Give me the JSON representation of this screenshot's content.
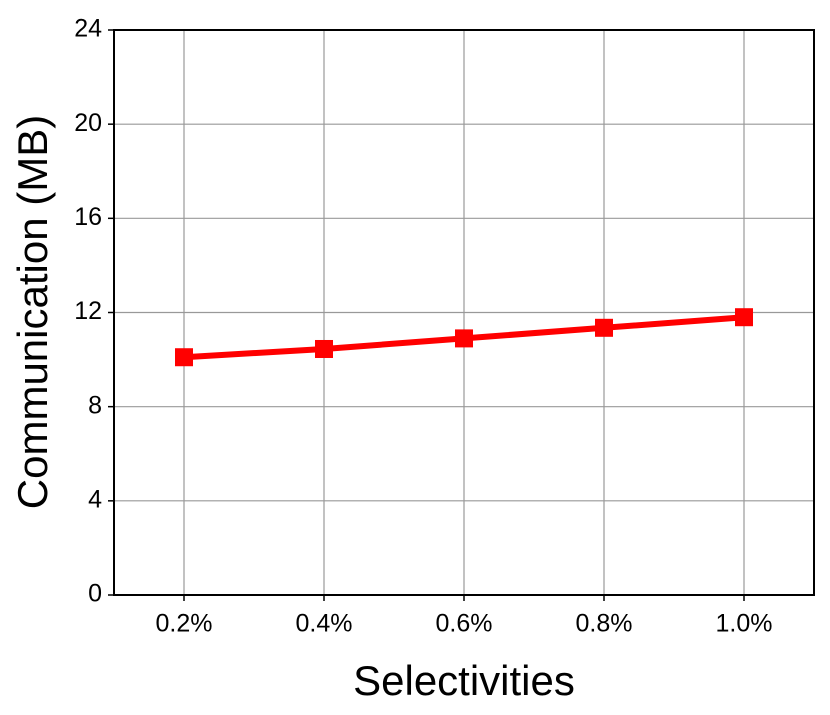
{
  "chart_data": {
    "type": "line",
    "x_label": "Selectivities",
    "y_label": "Communication (MB)",
    "categories": [
      "0.2%",
      "0.4%",
      "0.6%",
      "0.8%",
      "1.0%"
    ],
    "values": [
      10.1,
      10.45,
      10.9,
      11.35,
      11.8
    ],
    "color": "#ff0000",
    "ylim": [
      0,
      24
    ],
    "yticks": [
      0,
      4,
      8,
      12,
      16,
      20,
      24
    ],
    "grid": true
  }
}
